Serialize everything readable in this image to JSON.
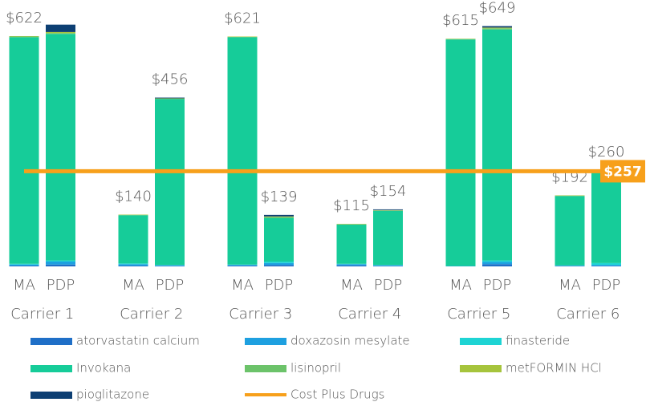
{
  "chart_data": {
    "type": "stacked_bar",
    "groups": [
      "Carrier 1",
      "Carrier 2",
      "Carrier 3",
      "Carrier 4",
      "Carrier 5",
      "Carrier 6"
    ],
    "subcategories": [
      "MA",
      "PDP"
    ],
    "ylim": [
      0,
      700
    ],
    "series": [
      {
        "name": "atorvastatin calcium",
        "color": "#1f6fc7",
        "values": [
          2,
          5,
          2,
          1,
          2,
          4,
          3,
          1,
          0,
          6,
          1,
          1
        ]
      },
      {
        "name": "doxazosin mesylate",
        "color": "#1ea0e0",
        "values": [
          3,
          8,
          4,
          2,
          2,
          5,
          3,
          2,
          1,
          6,
          1,
          3
        ]
      },
      {
        "name": "finasteride",
        "color": "#1ed4d4",
        "values": [
          2,
          3,
          2,
          1,
          1,
          4,
          1,
          1,
          0,
          4,
          1,
          5
        ]
      },
      {
        "name": "Invokana",
        "color": "#16cc99",
        "values": [
          612,
          612,
          130,
          448,
          614,
          118,
          106,
          146,
          612,
          624,
          187,
          249
        ]
      },
      {
        "name": "lisinopril",
        "color": "#6cc36a",
        "values": [
          2,
          2,
          1,
          1,
          1,
          2,
          1,
          1,
          1,
          3,
          1,
          1
        ]
      },
      {
        "name": "metFORMIN HCl",
        "color": "#a6c43c",
        "values": [
          1,
          3,
          1,
          1,
          1,
          2,
          1,
          1,
          1,
          2,
          1,
          1
        ]
      },
      {
        "name": "pioglitazone",
        "color": "#0d3f73",
        "values": [
          0,
          20,
          0,
          2,
          0,
          4,
          0,
          2,
          0,
          4,
          0,
          0
        ]
      }
    ],
    "total_labels": [
      "$622",
      null,
      "$140",
      "$456",
      "$621",
      "$139",
      "$115",
      "$154",
      "$615",
      "$649",
      "$192",
      "$260"
    ],
    "reference_line": {
      "name": "Cost Plus Drugs",
      "color": "#f7a01b",
      "value": 257,
      "value_label": "$257"
    }
  }
}
